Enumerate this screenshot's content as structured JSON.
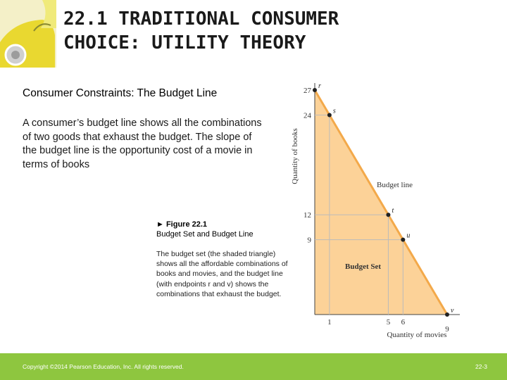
{
  "slide": {
    "title": "22.1 TRADITIONAL CONSUMER\nCHOICE: UTILITY THEORY",
    "subtitle": "Consumer Constraints: The Budget Line",
    "body": "A consumer’s budget line shows all the combinations of two goods that exhaust the budget. The slope of the  budget line is the opportunity cost  of a movie in terms of books",
    "figure_number": "► Figure 22.1",
    "figure_name": "Budget Set and Budget Line",
    "caption": "The budget set (the shaded triangle) shows all the affordable combinations of books and movies, and the budget line (with endpoints r and v) shows the combinations that exhaust the budget."
  },
  "footer": {
    "copyright": "Copyright ©2014 Pearson Education, Inc. All rights reserved.",
    "page_number": "22-3",
    "color": "#8ec63f"
  },
  "chart_data": {
    "type": "line",
    "xlabel": "Quantity of movies",
    "ylabel": "Quantity of books",
    "xlim": [
      0,
      9
    ],
    "ylim": [
      0,
      27
    ],
    "x_ticks": [
      1,
      5,
      6,
      9
    ],
    "y_ticks": [
      27,
      24,
      12,
      9
    ],
    "budget_line": [
      [
        0,
        27
      ],
      [
        9,
        0
      ]
    ],
    "points": [
      {
        "label": "r",
        "x": 0,
        "y": 27
      },
      {
        "label": "s",
        "x": 1,
        "y": 24
      },
      {
        "label": "t",
        "x": 5,
        "y": 12
      },
      {
        "label": "u",
        "x": 6,
        "y": 9
      },
      {
        "label": "v",
        "x": 9,
        "y": 0
      }
    ],
    "annotations": {
      "budget_line_label": "Budget line",
      "budget_set_label": "Budget Set"
    },
    "fill_color": "#fcd298",
    "line_color": "#f3a94a"
  }
}
